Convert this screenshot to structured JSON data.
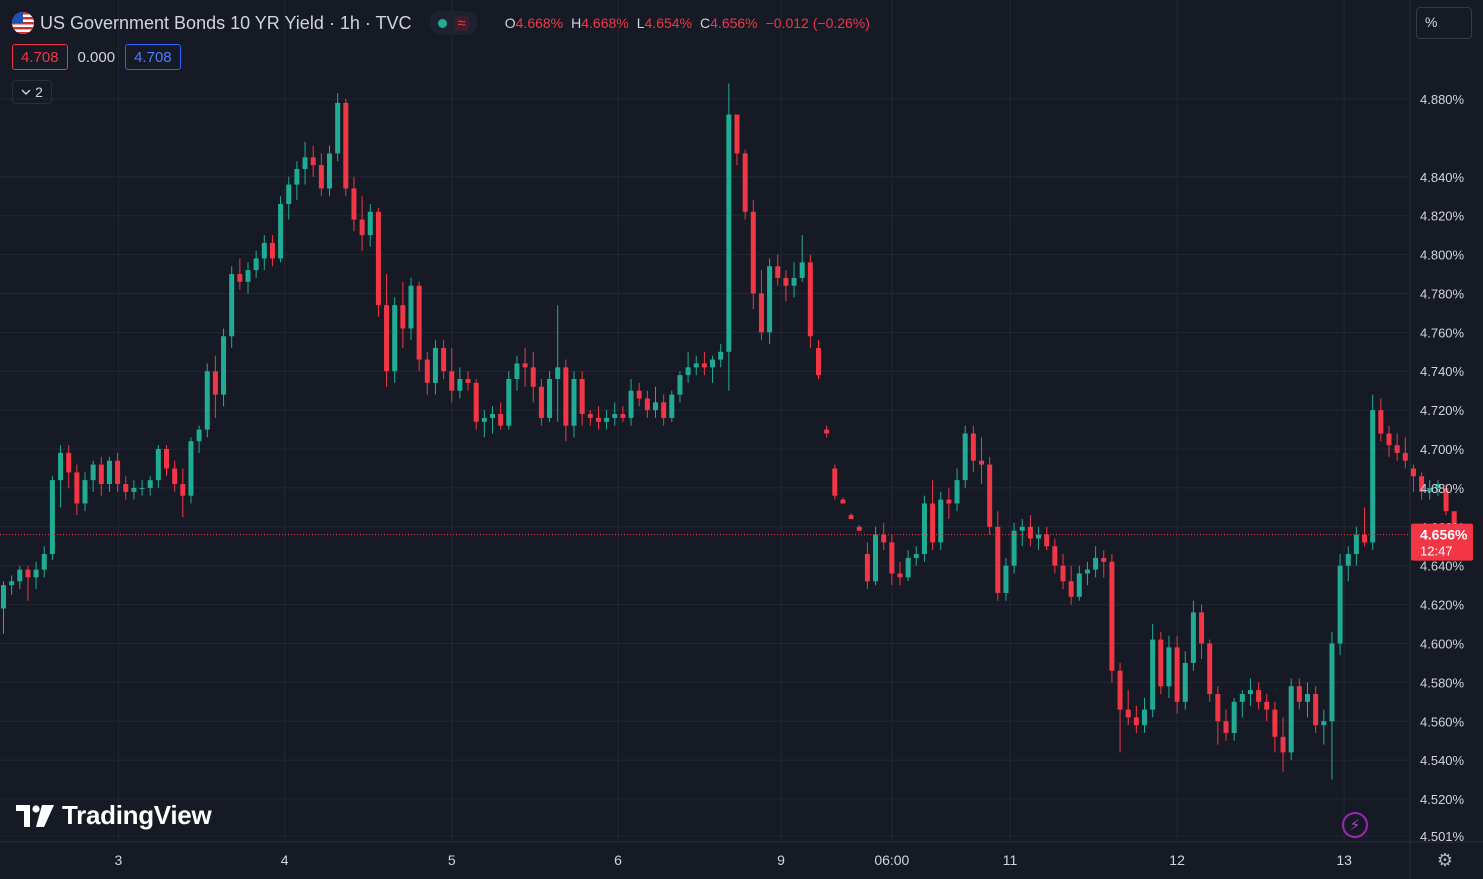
{
  "header": {
    "symbol_title": "US Government Bonds 10 YR Yield · 1h · TVC",
    "flag_icon": "us-flag-icon",
    "market_status_icon": "market-open-dot-icon",
    "data_icon": "delayed-data-wave-icon",
    "wave_glyph": "≈",
    "ohlc": {
      "o_label": "O",
      "o_value": "4.668%",
      "h_label": "H",
      "h_value": "4.668%",
      "l_label": "L",
      "l_value": "4.654%",
      "c_label": "C",
      "c_value": "4.656%",
      "change": "−0.012 (−0.26%)"
    },
    "sell_price": "4.708",
    "spread": "0.000",
    "buy_price": "4.708",
    "indicators_toggle_count": "2"
  },
  "price_scale": {
    "mode_label": "%"
  },
  "branding": {
    "logo_text": "TradingView"
  },
  "colors": {
    "background": "#161a25",
    "grid": "#232734",
    "up": "#22ab94",
    "down": "#f23645",
    "price_line": "#f23645"
  },
  "chart_data": {
    "type": "candlestick",
    "title": "US Government Bonds 10 YR Yield",
    "interval": "1h",
    "ylim": [
      4.495,
      4.895
    ],
    "y_ticks": [
      "4.880%",
      "4.840%",
      "4.820%",
      "4.800%",
      "4.780%",
      "4.760%",
      "4.740%",
      "4.720%",
      "4.700%",
      "4.680%",
      "4.660%",
      "4.640%",
      "4.620%",
      "4.600%",
      "4.580%",
      "4.560%",
      "4.540%",
      "4.520%",
      "4.501%"
    ],
    "y_tick_values": [
      4.88,
      4.84,
      4.82,
      4.8,
      4.78,
      4.76,
      4.74,
      4.72,
      4.7,
      4.68,
      4.66,
      4.64,
      4.62,
      4.6,
      4.58,
      4.56,
      4.54,
      4.52,
      4.501
    ],
    "x_ticks": [
      "3",
      "4",
      "5",
      "6",
      "9",
      "06:00",
      "11",
      "12",
      "13"
    ],
    "x_tick_index": [
      14.1,
      34.5,
      55.0,
      75.4,
      95.4,
      109.0,
      123.5,
      144.0,
      164.5
    ],
    "current_price": {
      "value": 4.656,
      "label": "4.656%",
      "countdown": "12:47"
    },
    "grid": true,
    "series": [
      {
        "name": "candles",
        "ohlc": [
          [
            4.618,
            4.632,
            4.605,
            4.63
          ],
          [
            4.63,
            4.635,
            4.625,
            4.632
          ],
          [
            4.632,
            4.64,
            4.628,
            4.638
          ],
          [
            4.638,
            4.64,
            4.622,
            4.634
          ],
          [
            4.634,
            4.642,
            4.628,
            4.638
          ],
          [
            4.638,
            4.65,
            4.634,
            4.646
          ],
          [
            4.646,
            4.686,
            4.643,
            4.684
          ],
          [
            4.684,
            4.702,
            4.67,
            4.698
          ],
          [
            4.698,
            4.702,
            4.68,
            4.688
          ],
          [
            4.688,
            4.692,
            4.666,
            4.672
          ],
          [
            4.672,
            4.688,
            4.668,
            4.684
          ],
          [
            4.684,
            4.694,
            4.678,
            4.692
          ],
          [
            4.692,
            4.696,
            4.676,
            4.682
          ],
          [
            4.682,
            4.696,
            4.678,
            4.694
          ],
          [
            4.694,
            4.698,
            4.678,
            4.682
          ],
          [
            4.682,
            4.686,
            4.674,
            4.678
          ],
          [
            4.678,
            4.684,
            4.674,
            4.68
          ],
          [
            4.68,
            4.684,
            4.676,
            4.68
          ],
          [
            4.68,
            4.686,
            4.676,
            4.684
          ],
          [
            4.684,
            4.702,
            4.68,
            4.7
          ],
          [
            4.7,
            4.702,
            4.686,
            4.69
          ],
          [
            4.69,
            4.694,
            4.678,
            4.682
          ],
          [
            4.682,
            4.69,
            4.665,
            4.676
          ],
          [
            4.676,
            4.706,
            4.672,
            4.704
          ],
          [
            4.704,
            4.712,
            4.698,
            4.71
          ],
          [
            4.71,
            4.744,
            4.706,
            4.74
          ],
          [
            4.74,
            4.748,
            4.716,
            4.728
          ],
          [
            4.728,
            4.762,
            4.722,
            4.758
          ],
          [
            4.758,
            4.794,
            4.752,
            4.79
          ],
          [
            4.79,
            4.798,
            4.782,
            4.786
          ],
          [
            4.786,
            4.796,
            4.78,
            4.792
          ],
          [
            4.792,
            4.802,
            4.788,
            4.798
          ],
          [
            4.798,
            4.81,
            4.792,
            4.806
          ],
          [
            4.806,
            4.81,
            4.794,
            4.798
          ],
          [
            4.798,
            4.83,
            4.796,
            4.826
          ],
          [
            4.826,
            4.84,
            4.818,
            4.836
          ],
          [
            4.836,
            4.848,
            4.828,
            4.844
          ],
          [
            4.844,
            4.858,
            4.836,
            4.85
          ],
          [
            4.85,
            4.856,
            4.84,
            4.846
          ],
          [
            4.846,
            4.852,
            4.83,
            4.834
          ],
          [
            4.834,
            4.856,
            4.83,
            4.852
          ],
          [
            4.852,
            4.883,
            4.848,
            4.878
          ],
          [
            4.878,
            4.88,
            4.83,
            4.834
          ],
          [
            4.834,
            4.84,
            4.812,
            4.818
          ],
          [
            4.818,
            4.83,
            4.802,
            4.81
          ],
          [
            4.81,
            4.826,
            4.804,
            4.822
          ],
          [
            4.822,
            4.824,
            4.768,
            4.774
          ],
          [
            4.774,
            4.79,
            4.732,
            4.74
          ],
          [
            4.74,
            4.778,
            4.734,
            4.774
          ],
          [
            4.774,
            4.786,
            4.752,
            4.762
          ],
          [
            4.762,
            4.788,
            4.756,
            4.784
          ],
          [
            4.784,
            4.786,
            4.74,
            4.746
          ],
          [
            4.746,
            4.75,
            4.728,
            4.734
          ],
          [
            4.734,
            4.756,
            4.728,
            4.752
          ],
          [
            4.752,
            4.756,
            4.736,
            4.74
          ],
          [
            4.74,
            4.752,
            4.724,
            4.73
          ],
          [
            4.73,
            4.742,
            4.726,
            4.736
          ],
          [
            4.736,
            4.74,
            4.73,
            4.734
          ],
          [
            4.734,
            4.736,
            4.71,
            4.714
          ],
          [
            4.714,
            4.72,
            4.706,
            4.716
          ],
          [
            4.716,
            4.722,
            4.708,
            4.718
          ],
          [
            4.718,
            4.724,
            4.71,
            4.712
          ],
          [
            4.712,
            4.74,
            4.71,
            4.736
          ],
          [
            4.736,
            4.748,
            4.73,
            4.744
          ],
          [
            4.744,
            4.752,
            4.732,
            4.742
          ],
          [
            4.742,
            4.75,
            4.724,
            4.732
          ],
          [
            4.732,
            4.736,
            4.712,
            4.716
          ],
          [
            4.716,
            4.74,
            4.714,
            4.736
          ],
          [
            4.736,
            4.774,
            4.714,
            4.742
          ],
          [
            4.742,
            4.746,
            4.704,
            4.712
          ],
          [
            4.712,
            4.74,
            4.706,
            4.736
          ],
          [
            4.736,
            4.74,
            4.712,
            4.718
          ],
          [
            4.718,
            4.72,
            4.712,
            4.716
          ],
          [
            4.716,
            4.722,
            4.71,
            4.714
          ],
          [
            4.714,
            4.72,
            4.71,
            4.716
          ],
          [
            4.716,
            4.724,
            4.712,
            4.718
          ],
          [
            4.718,
            4.722,
            4.714,
            4.716
          ],
          [
            4.716,
            4.736,
            4.712,
            4.73
          ],
          [
            4.73,
            4.734,
            4.722,
            4.726
          ],
          [
            4.726,
            4.73,
            4.716,
            4.72
          ],
          [
            4.72,
            4.732,
            4.716,
            4.724
          ],
          [
            4.724,
            4.728,
            4.712,
            4.716
          ],
          [
            4.716,
            4.73,
            4.714,
            4.728
          ],
          [
            4.728,
            4.74,
            4.724,
            4.738
          ],
          [
            4.738,
            4.75,
            4.734,
            4.742
          ],
          [
            4.742,
            4.748,
            4.738,
            4.744
          ],
          [
            4.744,
            4.75,
            4.738,
            4.742
          ],
          [
            4.742,
            4.748,
            4.734,
            4.746
          ],
          [
            4.746,
            4.754,
            4.742,
            4.75
          ],
          [
            4.75,
            4.888,
            4.73,
            4.872
          ],
          [
            4.872,
            4.868,
            4.846,
            4.852
          ],
          [
            4.852,
            4.854,
            4.818,
            4.822
          ],
          [
            4.822,
            4.828,
            4.772,
            4.78
          ],
          [
            4.78,
            4.792,
            4.756,
            4.76
          ],
          [
            4.76,
            4.798,
            4.754,
            4.794
          ],
          [
            4.794,
            4.8,
            4.784,
            4.788
          ],
          [
            4.788,
            4.792,
            4.776,
            4.784
          ],
          [
            4.784,
            4.796,
            4.778,
            4.788
          ],
          [
            4.788,
            4.81,
            4.786,
            4.796
          ],
          [
            4.796,
            4.8,
            4.752,
            4.758
          ],
          [
            4.752,
            4.756,
            4.736,
            4.738
          ],
          [
            4.71,
            4.712,
            4.706,
            4.708
          ],
          [
            4.69,
            4.692,
            4.674,
            4.676
          ],
          [
            4.674,
            4.675,
            4.672,
            4.672
          ],
          [
            4.666,
            4.667,
            4.664,
            4.664
          ],
          [
            4.66,
            4.661,
            4.658,
            4.658
          ],
          [
            4.646,
            4.652,
            4.628,
            4.632
          ],
          [
            4.632,
            4.66,
            4.63,
            4.656
          ],
          [
            4.656,
            4.662,
            4.648,
            4.652
          ],
          [
            4.652,
            4.656,
            4.63,
            4.636
          ],
          [
            4.636,
            4.642,
            4.63,
            4.634
          ],
          [
            4.634,
            4.648,
            4.632,
            4.644
          ],
          [
            4.644,
            4.65,
            4.64,
            4.646
          ],
          [
            4.646,
            4.676,
            4.642,
            4.672
          ],
          [
            4.672,
            4.684,
            4.648,
            4.652
          ],
          [
            4.652,
            4.678,
            4.648,
            4.674
          ],
          [
            4.674,
            4.68,
            4.664,
            4.672
          ],
          [
            4.672,
            4.69,
            4.668,
            4.684
          ],
          [
            4.684,
            4.712,
            4.68,
            4.708
          ],
          [
            4.708,
            4.712,
            4.688,
            4.694
          ],
          [
            4.694,
            4.706,
            4.682,
            4.692
          ],
          [
            4.692,
            4.696,
            4.656,
            4.66
          ],
          [
            4.66,
            4.668,
            4.622,
            4.626
          ],
          [
            4.626,
            4.644,
            4.622,
            4.64
          ],
          [
            4.64,
            4.662,
            4.636,
            4.658
          ],
          [
            4.658,
            4.664,
            4.65,
            4.66
          ],
          [
            4.66,
            4.666,
            4.65,
            4.654
          ],
          [
            4.654,
            4.66,
            4.648,
            4.656
          ],
          [
            4.656,
            4.66,
            4.648,
            4.65
          ],
          [
            4.65,
            4.654,
            4.636,
            4.64
          ],
          [
            4.64,
            4.646,
            4.628,
            4.632
          ],
          [
            4.632,
            4.64,
            4.62,
            4.624
          ],
          [
            4.624,
            4.64,
            4.622,
            4.636
          ],
          [
            4.636,
            4.642,
            4.63,
            4.638
          ],
          [
            4.638,
            4.65,
            4.634,
            4.644
          ],
          [
            4.644,
            4.648,
            4.634,
            4.642
          ],
          [
            4.642,
            4.646,
            4.58,
            4.586
          ],
          [
            4.586,
            4.59,
            4.544,
            4.566
          ],
          [
            4.566,
            4.576,
            4.558,
            4.562
          ],
          [
            4.562,
            4.568,
            4.554,
            4.558
          ],
          [
            4.558,
            4.572,
            4.554,
            4.566
          ],
          [
            4.566,
            4.61,
            4.562,
            4.602
          ],
          [
            4.602,
            4.606,
            4.574,
            4.578
          ],
          [
            4.578,
            4.604,
            4.572,
            4.598
          ],
          [
            4.598,
            4.604,
            4.564,
            4.57
          ],
          [
            4.57,
            4.596,
            4.566,
            4.59
          ],
          [
            4.59,
            4.622,
            4.586,
            4.616
          ],
          [
            4.616,
            4.62,
            4.592,
            4.6
          ],
          [
            4.6,
            4.602,
            4.57,
            4.574
          ],
          [
            4.574,
            4.578,
            4.548,
            4.56
          ],
          [
            4.56,
            4.566,
            4.55,
            4.554
          ],
          [
            4.554,
            4.572,
            4.55,
            4.57
          ],
          [
            4.57,
            4.576,
            4.562,
            4.574
          ],
          [
            4.574,
            4.582,
            4.568,
            4.576
          ],
          [
            4.576,
            4.58,
            4.566,
            4.57
          ],
          [
            4.57,
            4.574,
            4.56,
            4.566
          ],
          [
            4.566,
            4.57,
            4.544,
            4.552
          ],
          [
            4.552,
            4.562,
            4.534,
            4.544
          ],
          [
            4.544,
            4.582,
            4.54,
            4.578
          ],
          [
            4.578,
            4.582,
            4.566,
            4.57
          ],
          [
            4.57,
            4.58,
            4.562,
            4.574
          ],
          [
            4.574,
            4.578,
            4.554,
            4.558
          ],
          [
            4.558,
            4.566,
            4.548,
            4.56
          ],
          [
            4.56,
            4.606,
            4.53,
            4.6
          ],
          [
            4.6,
            4.646,
            4.594,
            4.64
          ],
          [
            4.64,
            4.65,
            4.632,
            4.646
          ],
          [
            4.646,
            4.66,
            4.64,
            4.656
          ],
          [
            4.656,
            4.67,
            4.65,
            4.652
          ],
          [
            4.652,
            4.728,
            4.648,
            4.72
          ],
          [
            4.72,
            4.726,
            4.704,
            4.708
          ],
          [
            4.708,
            4.712,
            4.696,
            4.702
          ],
          [
            4.702,
            4.708,
            4.694,
            4.698
          ],
          [
            4.698,
            4.706,
            4.69,
            4.694
          ],
          [
            4.69,
            4.692,
            4.678,
            4.686
          ],
          [
            4.686,
            4.688,
            4.674,
            4.678
          ],
          [
            4.678,
            4.684,
            4.674,
            4.68
          ],
          [
            4.68,
            4.684,
            4.676,
            4.682
          ],
          [
            4.68,
            4.682,
            4.666,
            4.668
          ],
          [
            4.668,
            4.668,
            4.654,
            4.656
          ]
        ]
      }
    ]
  }
}
